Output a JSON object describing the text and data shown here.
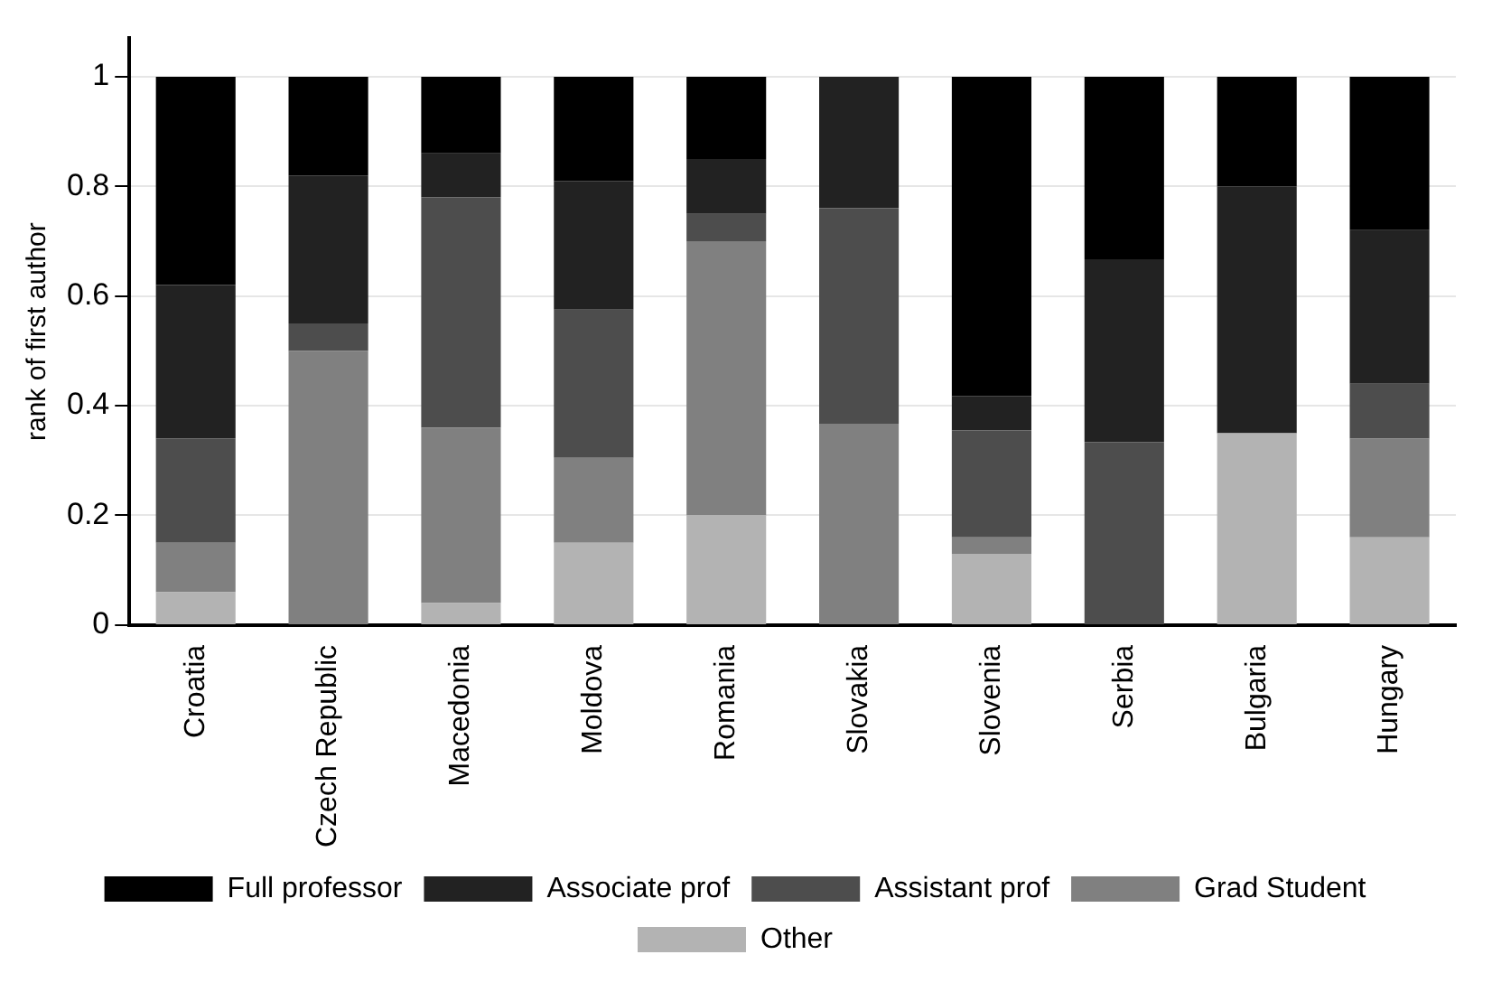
{
  "chart_data": {
    "type": "bar",
    "ylabel": "rank of first author",
    "stacked": true,
    "legend": "bottom",
    "grid": "y",
    "categories": [
      "Croatia",
      "Czech Republic",
      "Macedonia",
      "Moldova",
      "Romania",
      "Slovakia",
      "Slovenia",
      "Serbia",
      "Bulgaria",
      "Hungary"
    ],
    "ylim": [
      0,
      1.07
    ],
    "yticks": [
      0,
      0.2,
      0.4,
      0.6,
      0.8,
      1
    ],
    "series": [
      {
        "name": "Other",
        "color": "#b3b3b3",
        "values": [
          0.06,
          0,
          0.04,
          0.15,
          0.2,
          0,
          0.13,
          0,
          0.35,
          0.16
        ]
      },
      {
        "name": "Grad Student",
        "color": "#808080",
        "values": [
          0.09,
          0.5,
          0.32,
          0.155,
          0.5,
          0.367,
          0.03,
          0,
          0,
          0.18
        ]
      },
      {
        "name": "Assistant prof",
        "color": "#4d4d4d",
        "values": [
          0.19,
          0.05,
          0.42,
          0.27,
          0.05,
          0.393,
          0.195,
          0.334,
          0,
          0.1
        ]
      },
      {
        "name": "Associate prof",
        "color": "#222222",
        "values": [
          0.28,
          0.27,
          0.08,
          0.235,
          0.1,
          0.24,
          0.063,
          0.333,
          0.45,
          0.28
        ]
      },
      {
        "name": "Full professor",
        "color": "#000000",
        "values": [
          0.38,
          0.18,
          0.14,
          0.19,
          0.15,
          0,
          0.582,
          0.333,
          0.2,
          0.28
        ]
      }
    ]
  }
}
